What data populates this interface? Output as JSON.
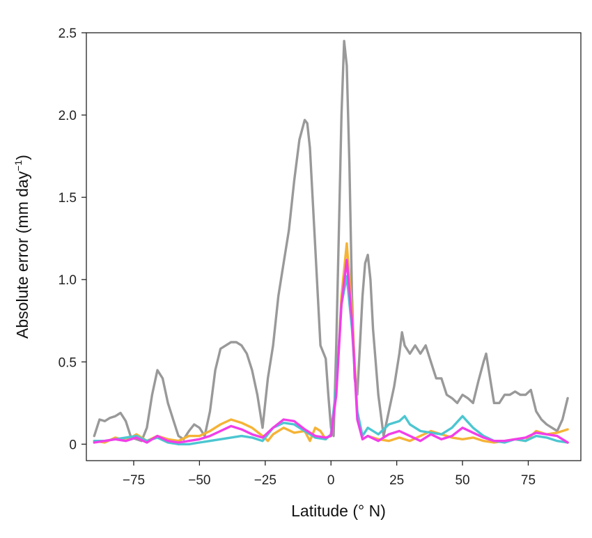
{
  "chart_data": {
    "type": "line",
    "xlabel": "Latitude (° N)",
    "ylabel_main": "Absolute error (mm day",
    "ylabel_sup": "−1",
    "ylabel_close": ")",
    "xlim": [
      -93,
      95
    ],
    "ylim": [
      -0.1,
      2.5
    ],
    "xticks": [
      -75,
      -50,
      -25,
      0,
      25,
      50,
      75
    ],
    "xtick_labels": [
      "−75",
      "−50",
      "−25",
      "0",
      "25",
      "50",
      "75"
    ],
    "yticks": [
      0,
      0.5,
      1.0,
      1.5,
      2.0,
      2.5
    ],
    "ytick_labels": [
      "0",
      "0.5",
      "1.0",
      "1.5",
      "2.0",
      "2.5"
    ],
    "grid": false,
    "series": [
      {
        "color": "#999999",
        "x": [
          -90,
          -88,
          -86,
          -84,
          -82,
          -80,
          -78,
          -76,
          -74,
          -72,
          -70,
          -68,
          -66,
          -64,
          -62,
          -60,
          -58,
          -56,
          -54,
          -52,
          -50,
          -48,
          -46,
          -44,
          -42,
          -40,
          -38,
          -36,
          -34,
          -32,
          -30,
          -28,
          -26,
          -24,
          -22,
          -20,
          -18,
          -16,
          -14,
          -12,
          -10,
          -9,
          -8,
          -6,
          -4,
          -2,
          -1,
          0,
          1,
          2,
          3,
          4,
          5,
          6,
          7,
          8,
          9,
          10,
          11,
          12,
          13,
          14,
          15,
          16,
          18,
          20,
          22,
          24,
          26,
          27,
          28,
          30,
          32,
          34,
          36,
          38,
          40,
          42,
          44,
          46,
          48,
          50,
          52,
          54,
          56,
          58,
          59,
          60,
          62,
          64,
          66,
          68,
          70,
          72,
          74,
          76,
          78,
          80,
          82,
          84,
          86,
          88,
          90
        ],
        "y": [
          0.05,
          0.15,
          0.14,
          0.16,
          0.17,
          0.19,
          0.14,
          0.04,
          0.03,
          0.02,
          0.1,
          0.3,
          0.45,
          0.4,
          0.25,
          0.15,
          0.05,
          0.03,
          0.08,
          0.12,
          0.1,
          0.05,
          0.2,
          0.45,
          0.58,
          0.6,
          0.62,
          0.62,
          0.6,
          0.55,
          0.45,
          0.3,
          0.1,
          0.4,
          0.6,
          0.9,
          1.1,
          1.3,
          1.6,
          1.85,
          1.97,
          1.95,
          1.8,
          1.2,
          0.6,
          0.52,
          0.3,
          0.1,
          0.05,
          0.6,
          1.3,
          2.0,
          2.45,
          2.3,
          1.7,
          0.9,
          0.4,
          0.3,
          0.6,
          0.9,
          1.1,
          1.15,
          1.0,
          0.7,
          0.3,
          0.05,
          0.2,
          0.35,
          0.55,
          0.68,
          0.6,
          0.55,
          0.6,
          0.55,
          0.6,
          0.5,
          0.4,
          0.4,
          0.3,
          0.28,
          0.25,
          0.3,
          0.28,
          0.25,
          0.38,
          0.5,
          0.55,
          0.45,
          0.25,
          0.25,
          0.3,
          0.3,
          0.32,
          0.3,
          0.3,
          0.33,
          0.2,
          0.15,
          0.12,
          0.1,
          0.08,
          0.15,
          0.28
        ]
      },
      {
        "color": "#F5B335",
        "x": [
          -90,
          -86,
          -82,
          -80,
          -76,
          -74,
          -70,
          -66,
          -62,
          -58,
          -54,
          -50,
          -46,
          -42,
          -38,
          -34,
          -30,
          -26,
          -24,
          -22,
          -18,
          -14,
          -10,
          -8,
          -6,
          -4,
          -2,
          0,
          2,
          4,
          6,
          8,
          10,
          12,
          14,
          18,
          22,
          26,
          30,
          34,
          38,
          42,
          46,
          50,
          54,
          58,
          62,
          66,
          70,
          74,
          78,
          82,
          86,
          90
        ],
        "y": [
          0.02,
          0.01,
          0.04,
          0.03,
          0.04,
          0.06,
          0.02,
          0.05,
          0.03,
          0.02,
          0.05,
          0.05,
          0.08,
          0.12,
          0.15,
          0.13,
          0.1,
          0.05,
          0.02,
          0.06,
          0.1,
          0.07,
          0.08,
          0.02,
          0.1,
          0.08,
          0.03,
          0.06,
          0.3,
          0.9,
          1.22,
          0.8,
          0.2,
          0.03,
          0.05,
          0.03,
          0.02,
          0.04,
          0.02,
          0.05,
          0.08,
          0.06,
          0.04,
          0.03,
          0.04,
          0.02,
          0.01,
          0.02,
          0.03,
          0.02,
          0.08,
          0.06,
          0.07,
          0.09
        ]
      },
      {
        "color": "#4CC6D1",
        "x": [
          -90,
          -86,
          -82,
          -78,
          -74,
          -70,
          -66,
          -62,
          -58,
          -54,
          -50,
          -46,
          -42,
          -38,
          -34,
          -30,
          -26,
          -22,
          -18,
          -14,
          -10,
          -6,
          -2,
          0,
          2,
          4,
          6,
          8,
          10,
          12,
          14,
          18,
          22,
          26,
          28,
          30,
          34,
          38,
          42,
          46,
          50,
          54,
          58,
          62,
          66,
          70,
          74,
          78,
          82,
          86,
          90
        ],
        "y": [
          0.02,
          0.02,
          0.03,
          0.04,
          0.05,
          0.02,
          0.04,
          0.01,
          0.0,
          0.0,
          0.01,
          0.02,
          0.03,
          0.04,
          0.05,
          0.04,
          0.02,
          0.1,
          0.13,
          0.12,
          0.08,
          0.04,
          0.03,
          0.06,
          0.35,
          0.85,
          1.02,
          0.7,
          0.2,
          0.05,
          0.1,
          0.06,
          0.12,
          0.14,
          0.17,
          0.12,
          0.08,
          0.07,
          0.06,
          0.1,
          0.17,
          0.1,
          0.05,
          0.02,
          0.01,
          0.03,
          0.02,
          0.05,
          0.04,
          0.02,
          0.01
        ]
      },
      {
        "color": "#F23EE8",
        "x": [
          -90,
          -86,
          -82,
          -78,
          -74,
          -70,
          -66,
          -62,
          -58,
          -54,
          -50,
          -46,
          -42,
          -38,
          -34,
          -30,
          -26,
          -22,
          -18,
          -14,
          -10,
          -6,
          -2,
          0,
          2,
          4,
          6,
          8,
          10,
          12,
          14,
          18,
          22,
          26,
          30,
          34,
          38,
          42,
          46,
          50,
          54,
          58,
          62,
          66,
          70,
          74,
          78,
          82,
          86,
          88,
          90
        ],
        "y": [
          0.01,
          0.02,
          0.03,
          0.02,
          0.04,
          0.01,
          0.05,
          0.02,
          0.01,
          0.02,
          0.03,
          0.05,
          0.08,
          0.11,
          0.09,
          0.06,
          0.04,
          0.1,
          0.15,
          0.14,
          0.09,
          0.05,
          0.04,
          0.05,
          0.3,
          0.85,
          1.12,
          0.75,
          0.15,
          0.03,
          0.05,
          0.02,
          0.06,
          0.08,
          0.05,
          0.02,
          0.06,
          0.03,
          0.05,
          0.1,
          0.07,
          0.04,
          0.02,
          0.02,
          0.03,
          0.04,
          0.07,
          0.06,
          0.05,
          0.03,
          0.01
        ]
      }
    ]
  }
}
